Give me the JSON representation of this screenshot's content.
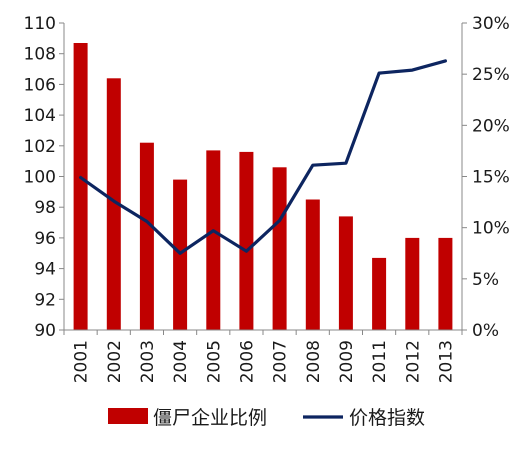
{
  "chart_data": {
    "type": "bar",
    "categories": [
      "2001",
      "2002",
      "2003",
      "2004",
      "2005",
      "2006",
      "2007",
      "2008",
      "2009",
      "2011",
      "2012",
      "2013"
    ],
    "series": [
      {
        "name": "僵尸企业比例",
        "kind": "bar",
        "axis": "left",
        "color": "#C00000",
        "values": [
          108.7,
          106.4,
          102.2,
          99.8,
          101.7,
          101.6,
          100.6,
          98.5,
          97.4,
          94.7,
          96.0,
          96.0
        ]
      },
      {
        "name": "价格指数",
        "kind": "line",
        "axis": "right",
        "color": "#0D2560",
        "values": [
          0.149,
          0.126,
          0.106,
          0.075,
          0.097,
          0.077,
          0.107,
          0.161,
          0.163,
          0.251,
          0.254,
          0.263
        ]
      }
    ],
    "left_axis": {
      "min": 90,
      "max": 110,
      "ticks": [
        "90",
        "92",
        "94",
        "96",
        "98",
        "100",
        "102",
        "104",
        "106",
        "108",
        "110"
      ]
    },
    "right_axis": {
      "min": 0,
      "max": 0.3,
      "ticks": [
        "0%",
        "5%",
        "10%",
        "15%",
        "20%",
        "25%",
        "30%"
      ]
    },
    "grid": false,
    "legend_position": "bottom"
  }
}
